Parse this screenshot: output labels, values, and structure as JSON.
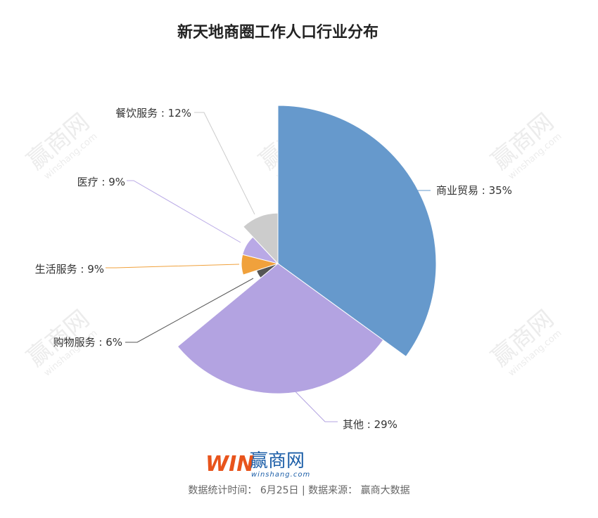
{
  "chart_data": {
    "type": "pie",
    "variant": "rose",
    "title": "新天地商圈工作人口行业分布",
    "slices": [
      {
        "label": "商业贸易",
        "value": 35,
        "display": "商业贸易 : 35%",
        "color": "#6699cc"
      },
      {
        "label": "其他",
        "value": 29,
        "display": "其他 : 29%",
        "color": "#b3a3e1"
      },
      {
        "label": "购物服务",
        "value": 6,
        "display": "购物服务 : 6%",
        "color": "#555555"
      },
      {
        "label": "生活服务",
        "value": 9,
        "display": "生活服务 : 9%",
        "color": "#f0a13c"
      },
      {
        "label": "医疗",
        "value": 9,
        "display": "医疗 : 9%",
        "color": "#b9a9e6"
      },
      {
        "label": "餐饮服务",
        "value": 12,
        "display": "餐饮服务 : 12%",
        "color": "#cccccc"
      }
    ]
  },
  "brand": {
    "logo_text": "WIN",
    "name": "赢商网",
    "domain": "winshang.com",
    "watermark_name": "赢商网",
    "watermark_domain": "winshang.com"
  },
  "footer": {
    "text": "数据统计时间： 6月25日 | 数据来源： 赢商大数据"
  }
}
